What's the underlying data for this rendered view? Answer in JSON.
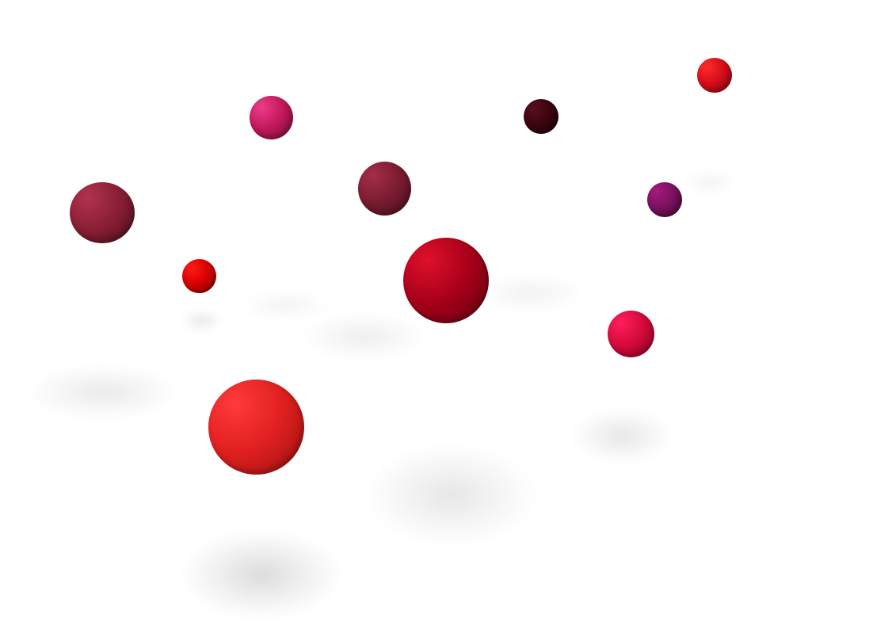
{
  "scene": {
    "background": "#ffffff",
    "subject": "floating-spheres",
    "spheres": [
      {
        "id": "sphere-1",
        "highlight": "#ee3b89",
        "base": "#c2185b",
        "dark": "#7a0f3a"
      },
      {
        "id": "sphere-2",
        "highlight": "#5a0f1e",
        "base": "#3a0510",
        "dark": "#1f0208"
      },
      {
        "id": "sphere-3",
        "highlight": "#ff2a2a",
        "base": "#d40d1a",
        "dark": "#8a0610"
      },
      {
        "id": "sphere-4",
        "highlight": "#b0334d",
        "base": "#8a1f35",
        "dark": "#4f0f1e"
      },
      {
        "id": "sphere-5",
        "highlight": "#a62d48",
        "base": "#7a1c31",
        "dark": "#4a0e1c"
      },
      {
        "id": "sphere-6",
        "highlight": "#a31a7d",
        "base": "#7a1160",
        "dark": "#4a0838"
      },
      {
        "id": "sphere-7",
        "highlight": "#ff1a1a",
        "base": "#d80000",
        "dark": "#8a0000"
      },
      {
        "id": "sphere-8",
        "highlight": "#e0102a",
        "base": "#a8001a",
        "dark": "#5e000e"
      },
      {
        "id": "sphere-9",
        "highlight": "#ff1f5c",
        "base": "#d40a3c",
        "dark": "#8c0424"
      },
      {
        "id": "sphere-10",
        "highlight": "#ff3a3a",
        "base": "#e02020",
        "dark": "#9a1010"
      }
    ]
  }
}
